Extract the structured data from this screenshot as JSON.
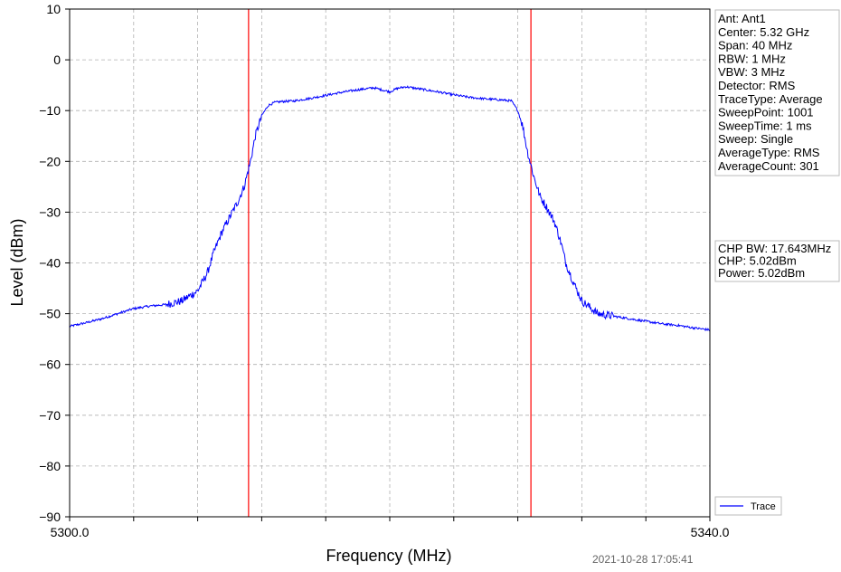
{
  "chart_data": {
    "type": "line",
    "title": "",
    "xlabel": "Frequency (MHz)",
    "ylabel": "Level (dBm)",
    "xlim": [
      5300.0,
      5340.0
    ],
    "ylim": [
      -90,
      10
    ],
    "x_tick_labels": [
      "5300.0",
      "5340.0"
    ],
    "y_ticks": [
      10,
      0,
      -10,
      -20,
      -30,
      -40,
      -50,
      -60,
      -70,
      -80,
      -90
    ],
    "y_tick_labels": [
      "10",
      "0",
      "−10",
      "−20",
      "−30",
      "−40",
      "−50",
      "−60",
      "−70",
      "−80",
      "−90"
    ],
    "grid": true,
    "legend_position": "bottom-right",
    "series": [
      {
        "name": "Trace",
        "color": "#0000ff",
        "x": [
          5300,
          5301,
          5302,
          5303,
          5304,
          5305,
          5306,
          5307,
          5308,
          5308.6,
          5309,
          5309.5,
          5310,
          5310.5,
          5310.9,
          5311.3,
          5311.6,
          5312,
          5312.4,
          5312.8,
          5313.3,
          5314,
          5315,
          5316,
          5317,
          5318,
          5319,
          5320,
          5320.5,
          5321,
          5322,
          5323,
          5324,
          5325,
          5326,
          5327,
          5327.6,
          5328,
          5328.3,
          5328.6,
          5329,
          5329.4,
          5329.8,
          5330.3,
          5330.7,
          5331,
          5331.5,
          5332,
          5333,
          5334,
          5335,
          5336,
          5337,
          5338,
          5339,
          5340
        ],
        "y": [
          -52.5,
          -51.8,
          -51,
          -50,
          -49,
          -48.5,
          -48.2,
          -47.5,
          -45.5,
          -42,
          -38,
          -34,
          -31,
          -28,
          -25,
          -20,
          -15,
          -11,
          -9,
          -8.4,
          -8.2,
          -8.1,
          -7.6,
          -7,
          -6.4,
          -5.9,
          -5.5,
          -6.3,
          -5.6,
          -5.3,
          -5.8,
          -6.3,
          -6.9,
          -7.4,
          -7.7,
          -7.9,
          -8.1,
          -10,
          -13,
          -18,
          -23,
          -27,
          -29,
          -32,
          -36,
          -40,
          -44,
          -47.5,
          -50,
          -50.5,
          -51,
          -51.5,
          -52,
          -52.3,
          -52.8,
          -53.2
        ]
      }
    ],
    "markers": [
      {
        "x": 5311.18,
        "color": "#ff0000"
      },
      {
        "x": 5328.82,
        "color": "#ff0000"
      }
    ]
  },
  "info_panel": [
    "Ant: Ant1",
    "Center: 5.32 GHz",
    "Span: 40 MHz",
    "RBW: 1 MHz",
    "VBW: 3 MHz",
    "Detector: RMS",
    "TraceType: Average",
    "SweepPoint: 1001",
    "SweepTime: 1 ms",
    "Sweep: Single",
    "AverageType: RMS",
    "AverageCount: 301"
  ],
  "measurement_panel": [
    "CHP BW: 17.643MHz",
    "CHP: 5.02dBm",
    "Power: 5.02dBm"
  ],
  "legend": {
    "label": "Trace"
  },
  "timestamp": "2021-10-28 17:05:41"
}
